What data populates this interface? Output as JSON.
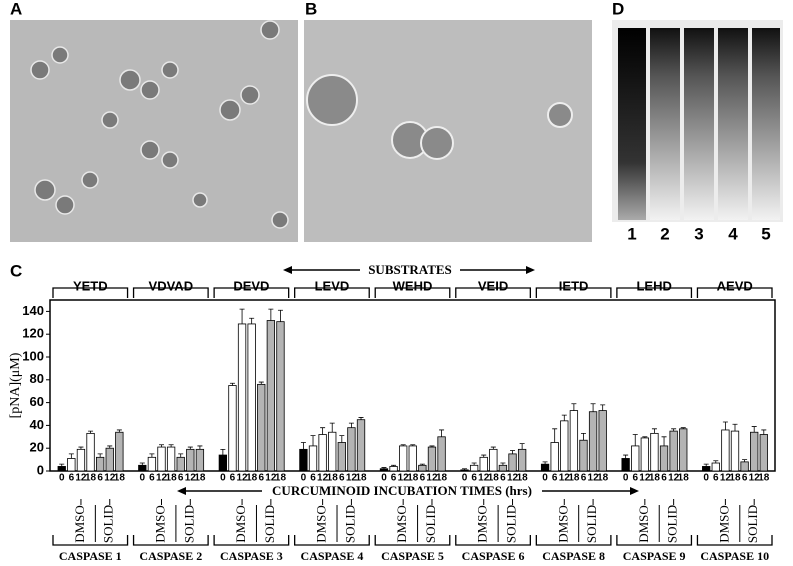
{
  "panel_labels": [
    "A",
    "B",
    "C",
    "D"
  ],
  "gel": {
    "lanes": [
      "1",
      "2",
      "3",
      "4",
      "5"
    ]
  },
  "chart_data": {
    "type": "bar",
    "ylabel": "[pNA](μM)",
    "substrates_label": "SUBSTRATES",
    "xlabel": "CURCUMINOID INCUBATION TIMES (hrs)",
    "times": [
      "0",
      "6",
      "12",
      "18",
      "6",
      "12",
      "18"
    ],
    "treatments": [
      "DMSO",
      "SOLID"
    ],
    "colors": [
      "#000000",
      "#ffffff",
      "#ffffff",
      "#ffffff",
      "#b4b4b4",
      "#b4b4b4",
      "#b4b4b4"
    ],
    "ylim": [
      0,
      150
    ],
    "yticks": [
      0,
      20,
      40,
      60,
      80,
      100,
      120,
      140
    ],
    "groups": [
      {
        "substrate": "YETD",
        "caspase": "CASPASE 1",
        "values": [
          4,
          11,
          19,
          33,
          12,
          20,
          34
        ],
        "errors": [
          2,
          4,
          2,
          2,
          3,
          2,
          2
        ]
      },
      {
        "substrate": "VDVAD",
        "caspase": "CASPASE 2",
        "values": [
          5,
          12,
          21,
          21,
          12,
          19,
          19
        ],
        "errors": [
          2,
          3,
          2,
          2,
          3,
          2,
          3
        ]
      },
      {
        "substrate": "DEVD",
        "caspase": "CASPASE 3",
        "values": [
          14,
          75,
          129,
          129,
          76,
          132,
          131
        ],
        "errors": [
          5,
          2,
          13,
          5,
          2,
          10,
          10
        ]
      },
      {
        "substrate": "LEVD",
        "caspase": "CASPASE 4",
        "values": [
          19,
          22,
          32,
          34,
          25,
          38,
          45
        ],
        "errors": [
          6,
          9,
          6,
          8,
          6,
          4,
          2
        ]
      },
      {
        "substrate": "WEHD",
        "caspase": "CASPASE 5",
        "values": [
          2,
          4,
          22,
          22,
          5,
          21,
          30
        ],
        "errors": [
          1,
          1,
          1,
          1,
          1,
          1,
          6
        ]
      },
      {
        "substrate": "VEID",
        "caspase": "CASPASE 6",
        "values": [
          1,
          5,
          12,
          19,
          5,
          15,
          19
        ],
        "errors": [
          1,
          2,
          2,
          2,
          2,
          3,
          5
        ]
      },
      {
        "substrate": "IETD",
        "caspase": "CASPASE 8",
        "values": [
          6,
          25,
          44,
          53,
          27,
          52,
          53
        ],
        "errors": [
          2,
          12,
          5,
          6,
          6,
          7,
          5
        ]
      },
      {
        "substrate": "LEHD",
        "caspase": "CASPASE 9",
        "values": [
          11,
          22,
          29,
          33,
          22,
          35,
          37
        ],
        "errors": [
          3,
          10,
          1,
          4,
          8,
          2,
          1
        ]
      },
      {
        "substrate": "AEVD",
        "caspase": "CASPASE 10",
        "values": [
          4,
          7,
          36,
          35,
          8,
          34,
          32
        ],
        "errors": [
          2,
          2,
          7,
          6,
          2,
          5,
          4
        ]
      }
    ]
  }
}
